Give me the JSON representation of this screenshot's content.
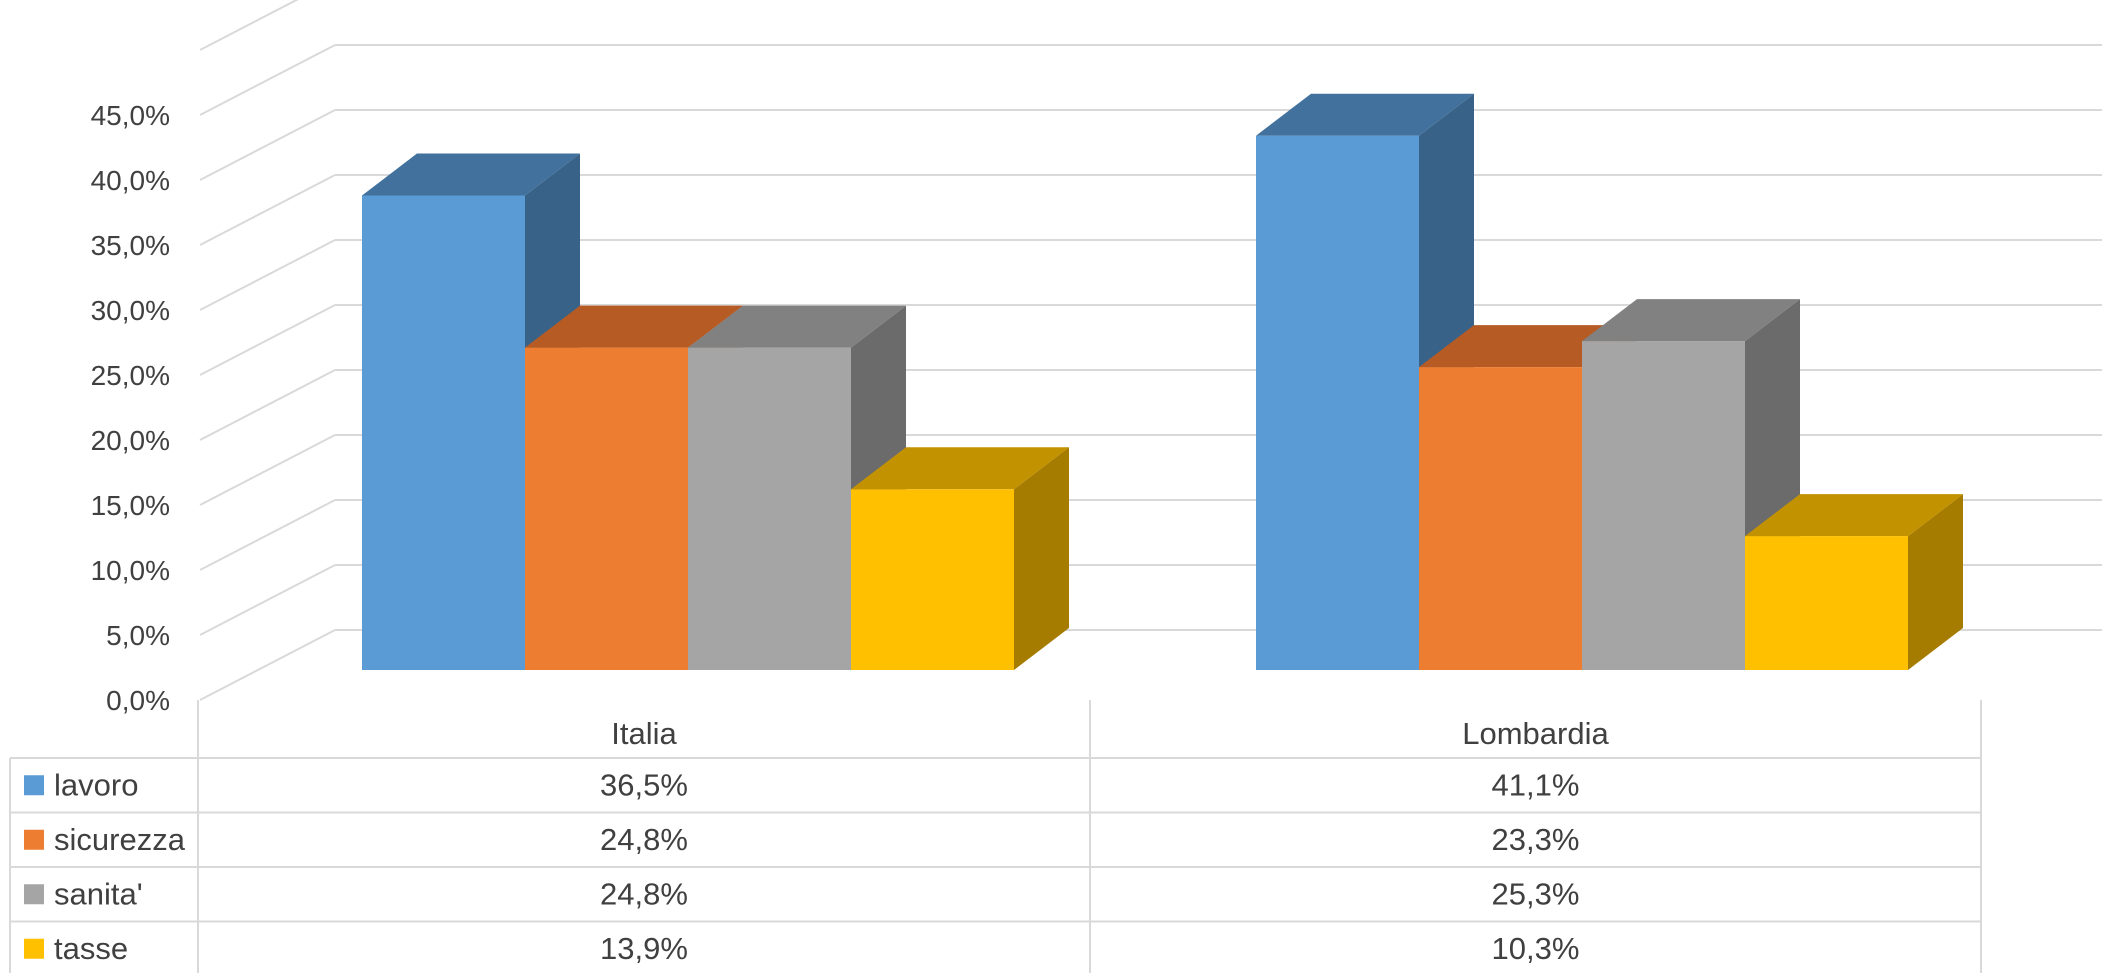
{
  "chart_data": {
    "type": "bar",
    "categories": [
      "Italia",
      "Lombardia"
    ],
    "series": [
      {
        "name": "lavoro",
        "values": [
          36.5,
          41.1
        ],
        "labels": [
          "36,5%",
          "41,1%"
        ],
        "color": "#5B9BD5",
        "top_color": "#41719C",
        "side_color": "#386287"
      },
      {
        "name": "sicurezza",
        "values": [
          24.8,
          23.3
        ],
        "labels": [
          "24,8%",
          "23,3%"
        ],
        "color": "#ED7D31",
        "top_color": "#B65B23",
        "side_color": "#A85520"
      },
      {
        "name": "sanita'",
        "values": [
          24.8,
          25.3
        ],
        "labels": [
          "24,8%",
          "25,3%"
        ],
        "color": "#A5A5A5",
        "top_color": "#818181",
        "side_color": "#6B6B6B"
      },
      {
        "name": "tasse",
        "values": [
          13.9,
          10.3
        ],
        "labels": [
          "13,9%",
          "10,3%"
        ],
        "color": "#FFC000",
        "top_color": "#C39200",
        "side_color": "#A67C00"
      }
    ],
    "ylim": [
      0,
      50
    ],
    "yticks": [
      "0,0%",
      "5,0%",
      "10,0%",
      "15,0%",
      "20,0%",
      "25,0%",
      "30,0%",
      "35,0%",
      "40,0%",
      "45,0%"
    ],
    "grid": true,
    "data_table": true,
    "colors": {
      "grid": "#D9D9D9",
      "text": "#404040"
    }
  }
}
